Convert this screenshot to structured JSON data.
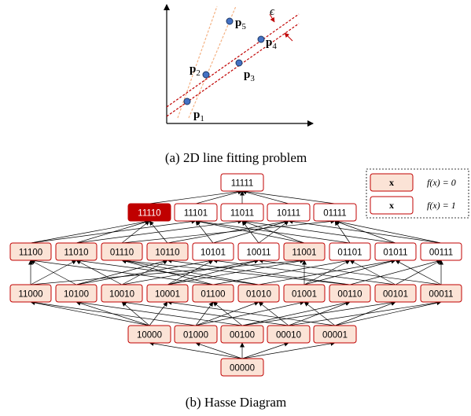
{
  "captions": {
    "a": "(a) 2D line fitting problem",
    "b": "(b) Hasse Diagram"
  },
  "colors": {
    "node_fill": "#fbe3d6",
    "node_border": "#c00000",
    "highlight_fill": "#c00000",
    "highlight_text": "#ffffff",
    "point_fill": "#4472c4",
    "point_stroke": "#1f3864",
    "fit_line": "#c00000",
    "alt_line": "#f4b183"
  },
  "line_fitting": {
    "points": [
      {
        "id": "p1",
        "letter": "p",
        "sub": "1"
      },
      {
        "id": "p2",
        "letter": "p",
        "sub": "2"
      },
      {
        "id": "p3",
        "letter": "p",
        "sub": "3"
      },
      {
        "id": "p4",
        "letter": "p",
        "sub": "4"
      },
      {
        "id": "p5",
        "letter": "p",
        "sub": "5"
      }
    ],
    "epsilon": "ϵ"
  },
  "legend": {
    "items": [
      {
        "symbol": "x",
        "fill": "#fbe3d6",
        "func": "f(x) = 0"
      },
      {
        "symbol": "x",
        "fill": "#ffffff",
        "func": "f(x) = 1"
      }
    ]
  },
  "hasse": {
    "levels": [
      [
        "11111"
      ],
      [
        "11110",
        "11101",
        "11011",
        "10111",
        "01111"
      ],
      [
        "11100",
        "11010",
        "01110",
        "10110",
        "10101",
        "10011",
        "11001",
        "01101",
        "01011",
        "00111"
      ],
      [
        "11000",
        "10100",
        "10010",
        "10001",
        "01100",
        "01010",
        "01001",
        "00110",
        "00101",
        "00011"
      ],
      [
        "10000",
        "01000",
        "00100",
        "00010",
        "00001"
      ],
      [
        "00000"
      ]
    ],
    "feasible": [
      "11110",
      "11100",
      "11010",
      "01110",
      "10110",
      "11001",
      "11000",
      "10100",
      "10010",
      "10001",
      "01100",
      "01010",
      "01001",
      "00110",
      "00101",
      "00011",
      "10000",
      "01000",
      "00100",
      "00010",
      "00001",
      "00000"
    ],
    "highlighted": "11110"
  }
}
